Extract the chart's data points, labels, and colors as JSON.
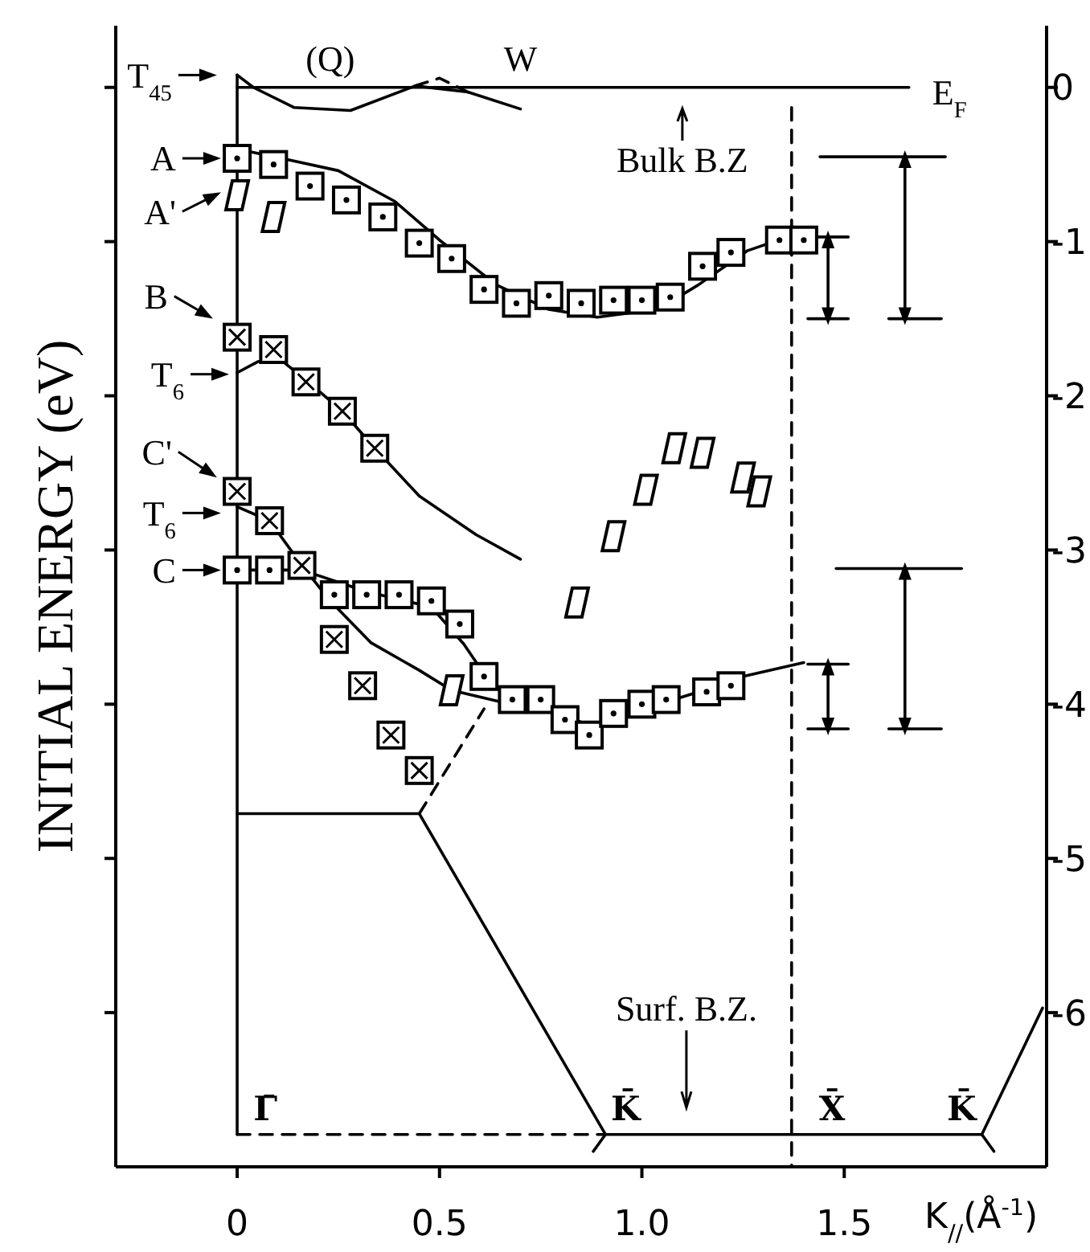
{
  "chart_data": {
    "type": "scatter",
    "xlabel": "K$_{//}$(Å$^{-1}$)",
    "ylabel": "INITIAL ENERGY (eV)",
    "xlim": [
      -0.3,
      2.0
    ],
    "xticks": [
      0,
      0.5,
      {
        "value": 1,
        "label": "1.0"
      },
      1.5
    ],
    "ylim": [
      -7,
      0.4
    ],
    "yticks": [
      0,
      -1,
      -2,
      -3,
      -4,
      -5,
      -6
    ],
    "series": [
      {
        "marker": "circle",
        "color": "#000000",
        "x": [
          0,
          0.09,
          0.18,
          0.27,
          0.36,
          0.45,
          0.53,
          0.61,
          0.69,
          0.77,
          0.85,
          0.93,
          1.0,
          1.07,
          1.15,
          1.22,
          1.34,
          1.4
        ],
        "values": [
          -0.46,
          -0.5,
          -0.64,
          -0.73,
          -0.84,
          -1.01,
          -1.11,
          -1.31,
          -1.4,
          -1.35,
          -1.4,
          -1.38,
          -1.38,
          -1.36,
          -1.16,
          -1.07,
          -0.99,
          -0.99
        ]
      },
      {
        "marker": "diamond",
        "color": "#000000",
        "x": [
          0,
          0.09,
          0.53,
          0.84,
          0.93,
          1.01,
          1.08,
          1.15,
          1.25,
          1.29
        ],
        "values": [
          -0.7,
          -0.84,
          -3.91,
          -3.34,
          -2.91,
          -2.61,
          -2.34,
          -2.37,
          -2.53,
          -2.62
        ]
      },
      {
        "marker": "square",
        "color": "#000000",
        "x": [
          0,
          0.09,
          0.17,
          0.26,
          0.34
        ],
        "values": [
          -1.62,
          -1.7,
          -1.91,
          -2.1,
          -2.34
        ]
      },
      {
        "marker": "square",
        "color": "#000000",
        "x": [
          0,
          0.08,
          0.16,
          0.24,
          0.31,
          0.38,
          0.45
        ],
        "values": [
          -2.62,
          -2.81,
          -3.1,
          -3.58,
          -3.88,
          -4.2,
          -4.43
        ]
      },
      {
        "marker": "circle",
        "color": "#000000",
        "x": [
          0,
          0.08,
          0.24,
          0.32,
          0.4,
          0.48,
          0.55,
          0.61,
          0.68,
          0.75,
          0.81,
          0.87,
          0.93,
          1.0,
          1.06,
          1.16,
          1.22
        ],
        "values": [
          -3.13,
          -3.13,
          -3.29,
          -3.29,
          -3.29,
          -3.33,
          -3.48,
          -3.82,
          -3.97,
          -3.97,
          -4.1,
          -4.2,
          -4.06,
          -4.0,
          -3.97,
          -3.92,
          -3.88
        ]
      },
      {
        "type": "line",
        "color": "#000000",
        "x": [
          0,
          1.66
        ],
        "values": [
          0,
          0
        ]
      },
      {
        "type": "line",
        "color": "#000000",
        "x": [
          0,
          0.04,
          0.14,
          0.28,
          0.44,
          0.57,
          0.7
        ],
        "values": [
          0.08,
          0,
          -0.13,
          -0.15,
          0.01,
          -0.03,
          -0.14
        ]
      },
      {
        "type": "line",
        "line_style": "dashed",
        "color": "#000000",
        "x": [
          0.44,
          0.5,
          0.57
        ],
        "values": [
          0.01,
          0.06,
          -0.03
        ]
      },
      {
        "type": "line",
        "color": "#000000",
        "x": [
          0,
          0.11,
          0.25,
          0.39,
          0.5,
          0.64,
          0.77,
          0.89,
          1.04,
          1.14,
          1.26,
          1.36,
          1.4
        ],
        "values": [
          -0.4,
          -0.46,
          -0.54,
          -0.74,
          -0.99,
          -1.28,
          -1.44,
          -1.49,
          -1.44,
          -1.28,
          -1.06,
          -0.97,
          -0.97
        ]
      },
      {
        "type": "line",
        "color": "#000000",
        "x": [
          0,
          0.05,
          0.1,
          0.18,
          0.26,
          0.34,
          0.45,
          0.59,
          0.7
        ],
        "values": [
          -1.85,
          -1.78,
          -1.75,
          -1.92,
          -2.1,
          -2.34,
          -2.65,
          -2.9,
          -3.06
        ]
      },
      {
        "type": "line",
        "color": "#000000",
        "x": [
          0,
          0.08,
          0.16,
          0.23,
          0.33,
          0.45,
          0.53,
          0.66
        ],
        "values": [
          -2.72,
          -2.81,
          -3.1,
          -3.33,
          -3.6,
          -3.78,
          -3.91,
          -3.99
        ]
      },
      {
        "type": "line",
        "color": "#000000",
        "x": [
          0,
          0.16,
          0.32,
          0.48,
          0.56,
          0.63,
          0.7,
          0.8,
          0.88,
          0.97,
          1.14,
          1.25,
          1.4
        ],
        "values": [
          -3.13,
          -3.13,
          -3.27,
          -3.37,
          -3.61,
          -3.88,
          -3.99,
          -4.06,
          -4.15,
          -4.06,
          -3.92,
          -3.82,
          -3.73
        ]
      },
      {
        "type": "line",
        "color": "#000000",
        "x": [
          0,
          0
        ],
        "values": [
          0.08,
          -6.79
        ]
      },
      {
        "type": "line",
        "color": "#000000",
        "x": [
          0,
          0.45,
          0.91
        ],
        "values": [
          -4.71,
          -4.71,
          -6.79
        ]
      },
      {
        "type": "line",
        "line_style": "dashed",
        "color": "#000000",
        "x": [
          0.45,
          0.61
        ],
        "values": [
          -4.71,
          -4.03
        ]
      },
      {
        "type": "line",
        "line_style": "dashed",
        "color": "#000000",
        "x": [
          0,
          0.91
        ],
        "values": [
          -6.79,
          -6.79
        ]
      },
      {
        "type": "line",
        "color": "#000000",
        "x": [
          0.88,
          0.91,
          1.84,
          1.99
        ],
        "values": [
          -6.9,
          -6.79,
          -6.79,
          -5.97
        ]
      },
      {
        "type": "line",
        "color": "#000000",
        "x": [
          1.84,
          1.87
        ],
        "values": [
          -6.79,
          -6.9
        ]
      },
      {
        "type": "line",
        "line_style": "dashed",
        "color": "#000000",
        "x": [
          1.37,
          1.37
        ],
        "values": [
          -0.13,
          -7
        ]
      },
      {
        "type": "line",
        "color": "#000000",
        "x": [
          1.44,
          1.75
        ],
        "values": [
          -0.45,
          -0.45
        ]
      },
      {
        "type": "line",
        "marker": "triangle",
        "color": "#000000",
        "x": [
          1.65,
          1.65
        ],
        "values": [
          -0.45,
          -1.5
        ]
      },
      {
        "type": "line",
        "color": "#000000",
        "x": [
          1.61,
          1.74
        ],
        "values": [
          -1.5,
          -1.5
        ]
      },
      {
        "type": "line",
        "color": "#000000",
        "x": [
          1.4,
          1.51
        ],
        "values": [
          -0.97,
          -0.97
        ]
      },
      {
        "type": "line",
        "marker": "triangle",
        "color": "#000000",
        "x": [
          1.46,
          1.46
        ],
        "values": [
          -0.97,
          -1.5
        ]
      },
      {
        "type": "line",
        "color": "#000000",
        "x": [
          1.41,
          1.51
        ],
        "values": [
          -1.5,
          -1.5
        ]
      },
      {
        "type": "line",
        "color": "#000000",
        "x": [
          1.48,
          1.79
        ],
        "values": [
          -3.12,
          -3.12
        ]
      },
      {
        "type": "line",
        "marker": "triangle",
        "color": "#000000",
        "x": [
          1.65,
          1.65
        ],
        "values": [
          -3.12,
          -4.16
        ]
      },
      {
        "type": "line",
        "color": "#000000",
        "x": [
          1.61,
          1.74
        ],
        "values": [
          -4.16,
          -4.16
        ]
      },
      {
        "type": "line",
        "color": "#000000",
        "x": [
          1.41,
          1.51
        ],
        "values": [
          -3.74,
          -3.74
        ]
      },
      {
        "type": "line",
        "marker": "triangle",
        "color": "#000000",
        "x": [
          1.46,
          1.46
        ],
        "values": [
          -3.74,
          -4.16
        ]
      },
      {
        "type": "line",
        "color": "#000000",
        "x": [
          1.41,
          1.51
        ],
        "values": [
          -4.16,
          -4.16
        ]
      }
    ],
    "annotations": [
      "T$_{45}$",
      "(Q)",
      "W",
      "E$_{F}$",
      "Bulk  B.Z",
      "A",
      "A'",
      "B",
      "T$_{6}$",
      "C'",
      "T$_{6}$",
      "C",
      "Surf.  B.Z.",
      "Γ̄",
      "K̄",
      "X̄",
      "K̄"
    ]
  }
}
